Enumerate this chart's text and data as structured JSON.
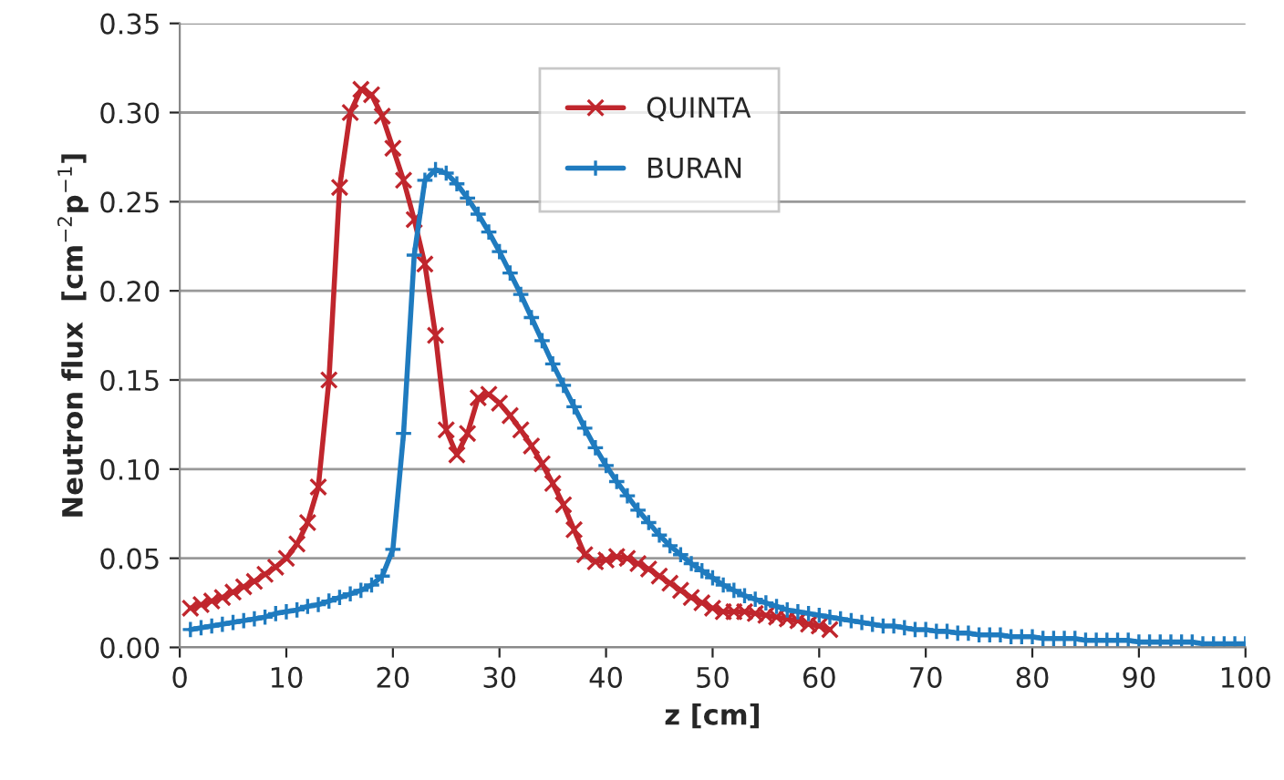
{
  "chart_data": {
    "type": "line",
    "xlabel": "z [cm]",
    "ylabel": "Neutron flux  [cm$^{−2}$p$^{−1}$]",
    "xlim": [
      0,
      100
    ],
    "xticks": [
      0,
      10,
      20,
      30,
      40,
      50,
      60,
      70,
      80,
      90,
      100
    ],
    "ylim": [
      0,
      0.35
    ],
    "yticks": [
      {
        "value": 0,
        "label": "0.00"
      },
      {
        "value": 0.05,
        "label": "0.05"
      },
      {
        "value": 0.1,
        "label": "0.10"
      },
      {
        "value": 0.15,
        "label": "0.15"
      },
      {
        "value": 0.2,
        "label": "0.20"
      },
      {
        "value": 0.25,
        "label": "0.25"
      },
      {
        "value": 0.3,
        "label": "0.30"
      },
      {
        "value": 0.35,
        "label": "0.35"
      }
    ],
    "grid": "y",
    "legend": "top",
    "series": [
      {
        "name": "QUINTA",
        "color": "#c0262d",
        "marker": "cross",
        "x": [
          1,
          2,
          3,
          4,
          5,
          6,
          7,
          8,
          9,
          10,
          11,
          12,
          13,
          14,
          15,
          16,
          17,
          18,
          19,
          20,
          21,
          22,
          23,
          24,
          25,
          26,
          27,
          28,
          29,
          30,
          31,
          32,
          33,
          34,
          35,
          36,
          37,
          38,
          39,
          40,
          41,
          42,
          43,
          44,
          45,
          46,
          47,
          48,
          49,
          50,
          51,
          52,
          53,
          54,
          55,
          56,
          57,
          58,
          59,
          60,
          61
        ],
        "values": [
          0.022,
          0.024,
          0.026,
          0.028,
          0.031,
          0.034,
          0.037,
          0.041,
          0.045,
          0.05,
          0.058,
          0.07,
          0.09,
          0.15,
          0.258,
          0.3,
          0.313,
          0.31,
          0.298,
          0.28,
          0.262,
          0.24,
          0.215,
          0.175,
          0.122,
          0.108,
          0.12,
          0.14,
          0.142,
          0.137,
          0.13,
          0.122,
          0.113,
          0.103,
          0.092,
          0.08,
          0.066,
          0.052,
          0.048,
          0.049,
          0.051,
          0.05,
          0.047,
          0.044,
          0.04,
          0.036,
          0.032,
          0.028,
          0.025,
          0.022,
          0.02,
          0.02,
          0.02,
          0.019,
          0.018,
          0.017,
          0.016,
          0.015,
          0.013,
          0.012,
          0.01
        ]
      },
      {
        "name": "BURAN",
        "color": "#1f7bbf",
        "marker": "plus",
        "x": [
          1,
          2,
          3,
          4,
          5,
          6,
          7,
          8,
          9,
          10,
          11,
          12,
          13,
          14,
          15,
          16,
          17,
          18,
          19,
          20,
          21,
          22,
          23,
          24,
          25,
          26,
          27,
          28,
          29,
          30,
          31,
          32,
          33,
          34,
          35,
          36,
          37,
          38,
          39,
          40,
          41,
          42,
          43,
          44,
          45,
          46,
          47,
          48,
          49,
          50,
          51,
          52,
          53,
          54,
          55,
          56,
          57,
          58,
          59,
          60,
          61,
          62,
          63,
          64,
          65,
          66,
          67,
          68,
          69,
          70,
          71,
          72,
          73,
          74,
          75,
          76,
          77,
          78,
          79,
          80,
          81,
          82,
          83,
          84,
          85,
          86,
          87,
          88,
          89,
          90,
          91,
          92,
          93,
          94,
          95,
          96,
          97,
          98,
          99,
          100
        ],
        "values": [
          0.01,
          0.011,
          0.012,
          0.013,
          0.014,
          0.015,
          0.016,
          0.017,
          0.019,
          0.02,
          0.021,
          0.023,
          0.024,
          0.026,
          0.028,
          0.03,
          0.032,
          0.035,
          0.04,
          0.055,
          0.12,
          0.22,
          0.262,
          0.268,
          0.266,
          0.26,
          0.252,
          0.243,
          0.233,
          0.222,
          0.21,
          0.198,
          0.185,
          0.172,
          0.159,
          0.147,
          0.135,
          0.123,
          0.112,
          0.102,
          0.093,
          0.085,
          0.077,
          0.07,
          0.063,
          0.057,
          0.052,
          0.047,
          0.043,
          0.039,
          0.035,
          0.032,
          0.029,
          0.027,
          0.025,
          0.023,
          0.021,
          0.02,
          0.019,
          0.018,
          0.017,
          0.016,
          0.015,
          0.014,
          0.013,
          0.012,
          0.012,
          0.011,
          0.01,
          0.01,
          0.009,
          0.009,
          0.008,
          0.008,
          0.007,
          0.007,
          0.007,
          0.006,
          0.006,
          0.006,
          0.005,
          0.005,
          0.005,
          0.005,
          0.004,
          0.004,
          0.004,
          0.004,
          0.004,
          0.003,
          0.003,
          0.003,
          0.003,
          0.003,
          0.003,
          0.002,
          0.002,
          0.002,
          0.002,
          0.002
        ]
      }
    ]
  }
}
